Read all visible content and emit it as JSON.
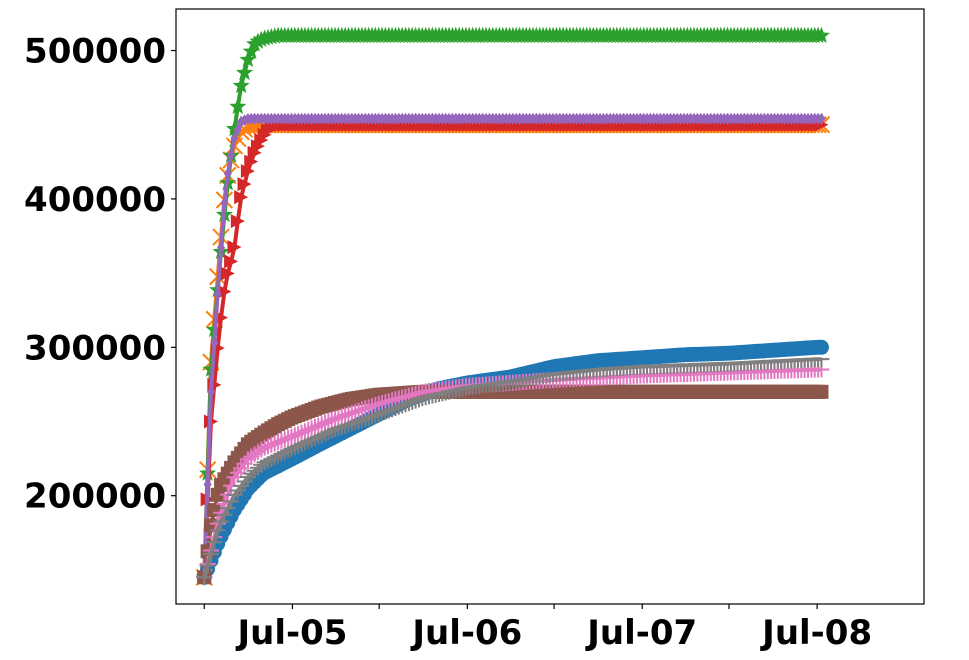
{
  "chart_data": {
    "type": "line",
    "title": "",
    "xlabel": "",
    "ylabel": "",
    "x_start": "2004-07-01",
    "x_step_days": 7,
    "n_points": 185,
    "xlim": [
      "2004-05-03",
      "2008-08-11"
    ],
    "ylim": [
      127000,
      528000
    ],
    "x_ticks": [
      {
        "date": "2004-07-01",
        "label": ""
      },
      {
        "date": "2005-01-01",
        "label": "Jul-05"
      },
      {
        "date": "2005-07-01",
        "label": ""
      },
      {
        "date": "2006-01-01",
        "label": "Jul-06"
      },
      {
        "date": "2006-07-01",
        "label": ""
      },
      {
        "date": "2007-01-01",
        "label": "Jul-07"
      },
      {
        "date": "2007-07-01",
        "label": ""
      },
      {
        "date": "2008-01-01",
        "label": "Jul-08"
      }
    ],
    "y_ticks": [
      {
        "value": 200000,
        "label": "200000"
      },
      {
        "value": 300000,
        "label": "300000"
      },
      {
        "value": 400000,
        "label": "400000"
      },
      {
        "value": 500000,
        "label": "500000"
      }
    ],
    "series": [
      {
        "color": "#1f77b4",
        "marker": "circle",
        "points": [
          [
            "2004-07-01",
            145000
          ],
          [
            "2004-08-01",
            170000
          ],
          [
            "2004-09-01",
            190000
          ],
          [
            "2004-10-01",
            205000
          ],
          [
            "2004-11-01",
            215000
          ],
          [
            "2005-01-01",
            225000
          ],
          [
            "2005-03-01",
            235000
          ],
          [
            "2005-05-01",
            245000
          ],
          [
            "2005-07-01",
            255000
          ],
          [
            "2005-09-01",
            265000
          ],
          [
            "2005-11-01",
            272000
          ],
          [
            "2006-01-01",
            276000
          ],
          [
            "2006-04-01",
            280000
          ],
          [
            "2006-07-01",
            287000
          ],
          [
            "2006-10-01",
            291000
          ],
          [
            "2007-01-01",
            293000
          ],
          [
            "2007-04-01",
            295000
          ],
          [
            "2007-07-01",
            296000
          ],
          [
            "2007-10-01",
            298000
          ],
          [
            "2008-01-01",
            300000
          ]
        ]
      },
      {
        "color": "#ff7f0e",
        "marker": "x",
        "points": [
          [
            "2004-07-01",
            145000
          ],
          [
            "2004-07-15",
            290000
          ],
          [
            "2004-08-01",
            360000
          ],
          [
            "2004-08-15",
            410000
          ],
          [
            "2004-09-01",
            435000
          ],
          [
            "2004-09-15",
            445000
          ],
          [
            "2004-10-01",
            449000
          ],
          [
            "2004-11-01",
            450000
          ],
          [
            "2008-01-01",
            450000
          ]
        ]
      },
      {
        "color": "#2ca02c",
        "marker": "star",
        "points": [
          [
            "2004-07-01",
            145000
          ],
          [
            "2004-07-15",
            285000
          ],
          [
            "2004-08-01",
            350000
          ],
          [
            "2004-08-15",
            400000
          ],
          [
            "2004-09-01",
            445000
          ],
          [
            "2004-09-15",
            475000
          ],
          [
            "2004-10-01",
            495000
          ],
          [
            "2004-10-15",
            505000
          ],
          [
            "2004-11-01",
            508000
          ],
          [
            "2004-12-01",
            510000
          ],
          [
            "2008-01-01",
            510000
          ]
        ]
      },
      {
        "color": "#d62728",
        "marker": "triangle-right",
        "points": [
          [
            "2004-07-01",
            145000
          ],
          [
            "2004-07-15",
            250000
          ],
          [
            "2004-08-01",
            310000
          ],
          [
            "2004-08-15",
            345000
          ],
          [
            "2004-09-01",
            365000
          ],
          [
            "2004-09-15",
            400000
          ],
          [
            "2004-10-01",
            420000
          ],
          [
            "2004-10-15",
            432000
          ],
          [
            "2004-11-01",
            442000
          ],
          [
            "2004-11-15",
            448000
          ],
          [
            "2004-12-01",
            450000
          ],
          [
            "2008-01-01",
            450000
          ]
        ]
      },
      {
        "color": "#9467bd",
        "marker": "diamond",
        "points": [
          [
            "2004-07-01",
            145000
          ],
          [
            "2004-07-15",
            270000
          ],
          [
            "2004-08-01",
            350000
          ],
          [
            "2004-08-15",
            410000
          ],
          [
            "2004-09-01",
            440000
          ],
          [
            "2004-09-15",
            452000
          ],
          [
            "2004-10-01",
            454000
          ],
          [
            "2008-01-01",
            454000
          ]
        ]
      },
      {
        "color": "#8c564b",
        "marker": "square",
        "points": [
          [
            "2004-07-01",
            145000
          ],
          [
            "2004-07-15",
            180000
          ],
          [
            "2004-08-01",
            205000
          ],
          [
            "2004-09-01",
            222000
          ],
          [
            "2004-10-01",
            235000
          ],
          [
            "2004-11-01",
            242000
          ],
          [
            "2004-12-01",
            248000
          ],
          [
            "2005-01-01",
            253000
          ],
          [
            "2005-03-01",
            260000
          ],
          [
            "2005-05-01",
            265000
          ],
          [
            "2005-07-01",
            268000
          ],
          [
            "2005-10-01",
            270000
          ],
          [
            "2008-01-01",
            270000
          ]
        ]
      },
      {
        "color": "#e377c2",
        "marker": "plus",
        "points": [
          [
            "2004-07-01",
            145000
          ],
          [
            "2004-08-01",
            185000
          ],
          [
            "2004-09-01",
            212000
          ],
          [
            "2004-10-01",
            225000
          ],
          [
            "2004-11-01",
            232000
          ],
          [
            "2005-01-01",
            240000
          ],
          [
            "2005-04-01",
            252000
          ],
          [
            "2005-07-01",
            262000
          ],
          [
            "2005-10-01",
            270000
          ],
          [
            "2006-01-01",
            274000
          ],
          [
            "2006-07-01",
            278000
          ],
          [
            "2007-01-01",
            281000
          ],
          [
            "2007-07-01",
            283000
          ],
          [
            "2008-01-01",
            285000
          ]
        ]
      },
      {
        "color": "#7f7f7f",
        "marker": "tri",
        "points": [
          [
            "2004-07-01",
            145000
          ],
          [
            "2004-08-01",
            180000
          ],
          [
            "2004-09-01",
            200000
          ],
          [
            "2004-10-01",
            213000
          ],
          [
            "2004-11-01",
            222000
          ],
          [
            "2005-01-01",
            232000
          ],
          [
            "2005-04-01",
            245000
          ],
          [
            "2005-07-01",
            255000
          ],
          [
            "2005-10-01",
            266000
          ],
          [
            "2006-01-01",
            273000
          ],
          [
            "2006-04-01",
            277000
          ],
          [
            "2006-07-01",
            282000
          ],
          [
            "2006-10-01",
            285000
          ],
          [
            "2007-01-01",
            287000
          ],
          [
            "2007-07-01",
            289000
          ],
          [
            "2008-01-01",
            292000
          ]
        ]
      }
    ]
  }
}
